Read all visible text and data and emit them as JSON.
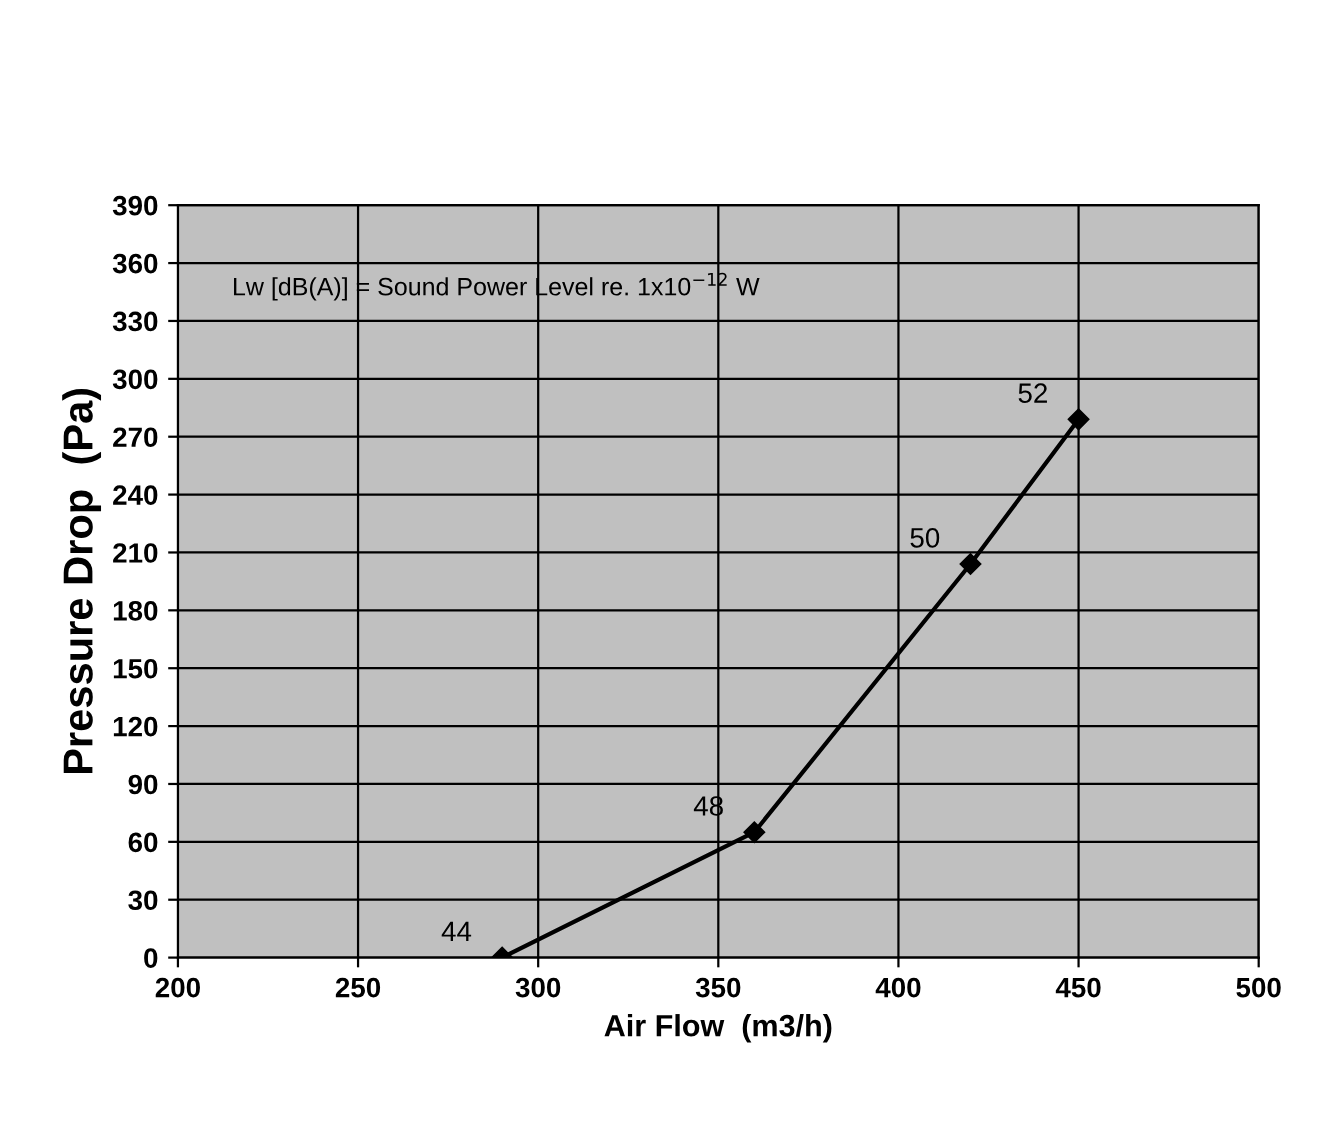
{
  "chart_data": {
    "type": "line",
    "xlabel": "Air Flow  (m3/h)",
    "ylabel": "Pressure Drop  (Pa)",
    "x": [
      290,
      360,
      420,
      450
    ],
    "series": [
      {
        "color": "#000000",
        "values": [
          0,
          65,
          204,
          279
        ]
      }
    ],
    "xlim": [
      200,
      500
    ],
    "xticks": [
      200,
      250,
      300,
      350,
      400,
      450,
      500
    ],
    "ylim": [
      0,
      390
    ],
    "yticks": [
      0,
      30,
      60,
      90,
      120,
      150,
      180,
      210,
      240,
      270,
      300,
      330,
      360,
      390
    ],
    "grid": true,
    "marker": "diamond",
    "line_style": "solid",
    "annotations": [
      "Lw [dB(A)] = Sound Power Level re. 1x10$^{−12}$ W",
      {
        "text": "44",
        "x": 290,
        "y": 0
      },
      {
        "text": "48",
        "x": 360,
        "y": 65
      },
      {
        "text": "50",
        "x": 420,
        "y": 204
      },
      {
        "text": "52",
        "x": 450,
        "y": 279
      }
    ]
  }
}
